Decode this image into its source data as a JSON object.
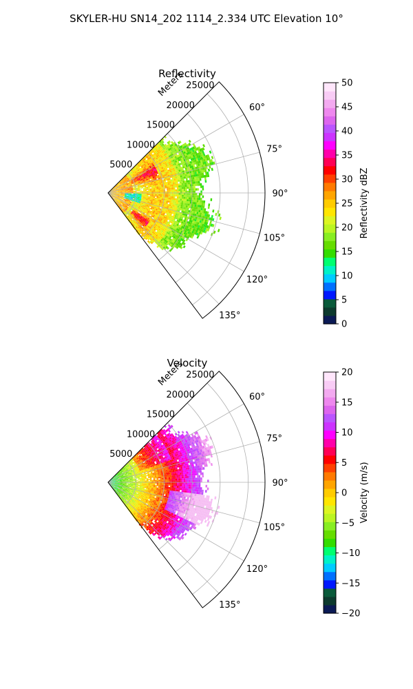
{
  "figure": {
    "title": "SKYLER-HU  SN14_202  1114_2.334 UTC Elevation 10°"
  },
  "chart_data": [
    {
      "type": "heatmap",
      "subtype": "polar-sector",
      "title": "Reflectivity",
      "range_axis_label": "Meters",
      "range_ticks": [
        5000,
        10000,
        15000,
        20000,
        25000
      ],
      "range_tick_labels": [
        "5000",
        "10000",
        "15000",
        "20000",
        "25000"
      ],
      "range_max": 28000,
      "azimuth_range_deg": [
        45,
        143
      ],
      "azimuth_ticks_deg": [
        60,
        75,
        90,
        105,
        120,
        135
      ],
      "azimuth_tick_labels": [
        "60°",
        "75°",
        "90°",
        "105°",
        "120°",
        "135°"
      ],
      "grid": true,
      "colorbar": {
        "label": "Reflectivity dBZ",
        "min": 0,
        "max": 50,
        "ticks": [
          0,
          5,
          10,
          15,
          20,
          25,
          30,
          35,
          40,
          45,
          50
        ],
        "tick_labels": [
          "0",
          "5",
          "10",
          "15",
          "20",
          "25",
          "30",
          "35",
          "40",
          "45",
          "50"
        ]
      },
      "echo_extent_m": [
        0,
        17000
      ],
      "typical_value": 20,
      "colors": [
        "#0b1a55",
        "#0d3a2e",
        "#0a5a3a",
        "#0018ff",
        "#0070ff",
        "#00ccff",
        "#00f2c8",
        "#00ff70",
        "#33dd00",
        "#66dd00",
        "#88ee22",
        "#bbf522",
        "#ddf522",
        "#ffe600",
        "#ffcc00",
        "#ffa500",
        "#ff7a00",
        "#ff4000",
        "#ff0000",
        "#ff0055",
        "#ff00aa",
        "#ff00ff",
        "#cc33ff",
        "#bb55ff",
        "#dd66ee",
        "#ee88ee",
        "#f3aaf0",
        "#f8ccf5",
        "#ffe6fb"
      ]
    },
    {
      "type": "heatmap",
      "subtype": "polar-sector",
      "title": "Velocity",
      "range_axis_label": "Meters",
      "range_ticks": [
        5000,
        10000,
        15000,
        20000,
        25000
      ],
      "range_tick_labels": [
        "5000",
        "10000",
        "15000",
        "20000",
        "25000"
      ],
      "range_max": 28000,
      "azimuth_range_deg": [
        45,
        143
      ],
      "azimuth_ticks_deg": [
        60,
        75,
        90,
        105,
        120,
        135
      ],
      "azimuth_tick_labels": [
        "60°",
        "75°",
        "90°",
        "105°",
        "120°",
        "135°"
      ],
      "grid": true,
      "colorbar": {
        "label": "Velocity (m/s)",
        "min": -20,
        "max": 20,
        "ticks": [
          -20,
          -15,
          -10,
          -5,
          0,
          5,
          10,
          15,
          20
        ],
        "tick_labels": [
          "−20",
          "−15",
          "−10",
          "−5",
          "0",
          "5",
          "10",
          "15",
          "20"
        ]
      },
      "echo_extent_m": [
        0,
        17000
      ],
      "velocity_trend": "about -10 m/s near the radar rising to about +10 m/s at 12–17 km, +15 m/s toward 105–110°",
      "colors": [
        "#0b1a55",
        "#0d3a2e",
        "#0a5a3a",
        "#0018ff",
        "#0070ff",
        "#00ccff",
        "#00f2c8",
        "#00ff70",
        "#33dd00",
        "#66dd00",
        "#88ee22",
        "#bbf522",
        "#ddf522",
        "#ffe600",
        "#ffcc00",
        "#ffa500",
        "#ff7a00",
        "#ff4000",
        "#ff0000",
        "#ff0055",
        "#ff00aa",
        "#ff00ff",
        "#cc33ff",
        "#bb55ff",
        "#dd66ee",
        "#ee88ee",
        "#f3aaf0",
        "#f8ccf5",
        "#ffe6fb"
      ]
    }
  ]
}
